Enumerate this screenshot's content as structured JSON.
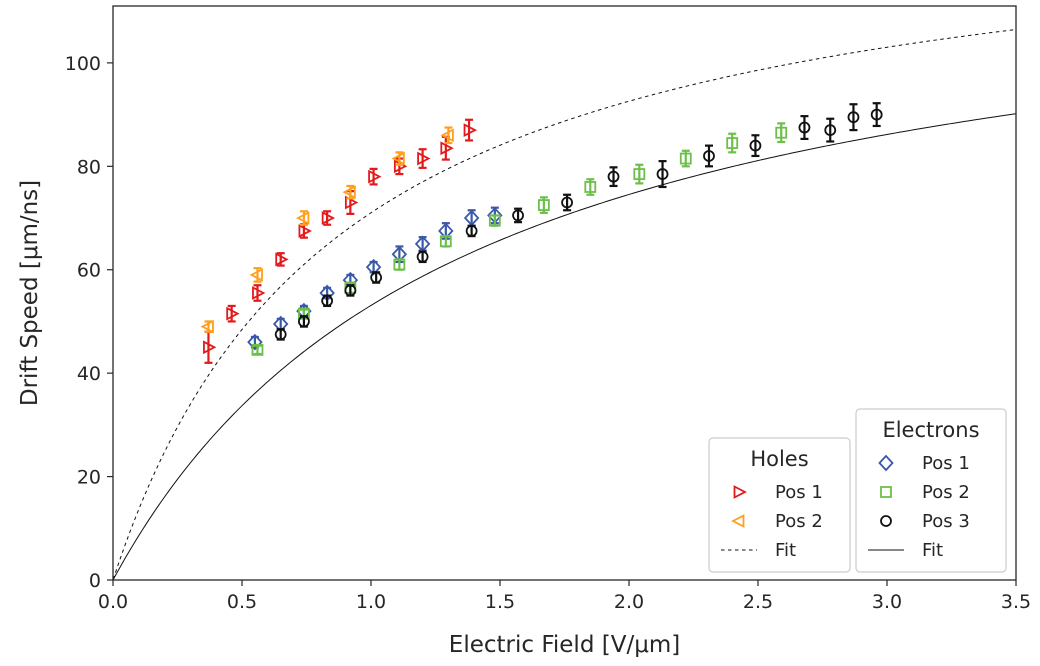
{
  "chart_data": {
    "type": "scatter",
    "xlabel": "Electric Field [V/μm]",
    "ylabel": "Drift Speed [μm/ns]",
    "xlim": [
      0,
      3.5
    ],
    "ylim": [
      0,
      111
    ],
    "xticks": [
      0.0,
      0.5,
      1.0,
      1.5,
      2.0,
      2.5,
      3.0,
      3.5
    ],
    "yticks": [
      0,
      20,
      40,
      60,
      80,
      100
    ],
    "xtick_labels": [
      "0.0",
      "0.5",
      "1.0",
      "1.5",
      "2.0",
      "2.5",
      "3.0",
      "3.5"
    ],
    "ytick_labels": [
      "0",
      "20",
      "40",
      "60",
      "80",
      "100"
    ],
    "grid": false,
    "legends": [
      {
        "title": "Holes",
        "placement": "lower-right",
        "entries": [
          {
            "label": "Pos 1",
            "series": "holes_pos1"
          },
          {
            "label": "Pos 2",
            "series": "holes_pos2"
          },
          {
            "label": "Fit",
            "series": "holes_fit"
          }
        ]
      },
      {
        "title": "Electrons",
        "placement": "lower-right",
        "entries": [
          {
            "label": "Pos 1",
            "series": "electrons_pos1"
          },
          {
            "label": "Pos 2",
            "series": "electrons_pos2"
          },
          {
            "label": "Pos 3",
            "series": "electrons_pos3"
          },
          {
            "label": "Fit",
            "series": "electrons_fit"
          }
        ]
      }
    ],
    "series": [
      {
        "id": "holes_pos1",
        "marker": "triangle-right",
        "color": "#e31a1c",
        "points": [
          [
            0.37,
            45.0,
            3.0
          ],
          [
            0.46,
            51.5,
            1.5
          ],
          [
            0.56,
            55.5,
            1.5
          ],
          [
            0.65,
            62.0,
            1.2
          ],
          [
            0.74,
            67.5,
            1.3
          ],
          [
            0.83,
            70.0,
            1.3
          ],
          [
            0.92,
            73.0,
            2.2
          ],
          [
            1.01,
            78.0,
            1.5
          ],
          [
            1.11,
            80.0,
            1.5
          ],
          [
            1.2,
            81.5,
            1.8
          ],
          [
            1.29,
            83.5,
            2.2
          ],
          [
            1.38,
            87.0,
            2.0
          ]
        ]
      },
      {
        "id": "holes_pos2",
        "marker": "triangle-left",
        "color": "#ff9f1c",
        "points": [
          [
            0.37,
            49.0,
            1.0
          ],
          [
            0.56,
            59.0,
            1.3
          ],
          [
            0.74,
            70.0,
            1.3
          ],
          [
            0.92,
            75.0,
            1.2
          ],
          [
            1.11,
            81.5,
            1.2
          ],
          [
            1.3,
            86.0,
            1.5
          ]
        ]
      },
      {
        "id": "electrons_pos1",
        "marker": "diamond",
        "color": "#3a58a8",
        "points": [
          [
            0.55,
            46.0,
            1.0
          ],
          [
            0.65,
            49.5,
            1.0
          ],
          [
            0.74,
            52.0,
            1.0
          ],
          [
            0.83,
            55.5,
            1.0
          ],
          [
            0.92,
            58.0,
            1.0
          ],
          [
            1.01,
            60.5,
            1.0
          ],
          [
            1.11,
            63.0,
            1.5
          ],
          [
            1.2,
            65.0,
            1.3
          ],
          [
            1.29,
            67.5,
            1.5
          ],
          [
            1.39,
            70.0,
            1.5
          ],
          [
            1.48,
            70.5,
            1.5
          ]
        ]
      },
      {
        "id": "electrons_pos2",
        "marker": "square",
        "color": "#6cbf4a",
        "points": [
          [
            0.56,
            44.5,
            0.8
          ],
          [
            0.74,
            51.5,
            0.8
          ],
          [
            0.92,
            56.5,
            1.0
          ],
          [
            1.11,
            61.0,
            1.0
          ],
          [
            1.29,
            65.5,
            1.0
          ],
          [
            1.48,
            69.5,
            1.0
          ],
          [
            1.67,
            72.5,
            1.5
          ],
          [
            1.85,
            76.0,
            1.5
          ],
          [
            2.04,
            78.5,
            1.8
          ],
          [
            2.22,
            81.5,
            1.5
          ],
          [
            2.4,
            84.5,
            1.8
          ],
          [
            2.59,
            86.5,
            1.8
          ]
        ]
      },
      {
        "id": "electrons_pos3",
        "marker": "circle",
        "color": "#111111",
        "points": [
          [
            0.65,
            47.5,
            1.0
          ],
          [
            0.74,
            50.0,
            1.0
          ],
          [
            0.83,
            54.0,
            1.0
          ],
          [
            0.92,
            56.0,
            1.0
          ],
          [
            1.02,
            58.5,
            1.0
          ],
          [
            1.2,
            62.5,
            1.0
          ],
          [
            1.39,
            67.5,
            1.0
          ],
          [
            1.57,
            70.5,
            1.3
          ],
          [
            1.76,
            73.0,
            1.5
          ],
          [
            1.94,
            78.0,
            1.8
          ],
          [
            2.13,
            78.5,
            2.5
          ],
          [
            2.31,
            82.0,
            2.0
          ],
          [
            2.49,
            84.0,
            2.0
          ],
          [
            2.68,
            87.5,
            2.2
          ],
          [
            2.78,
            87.0,
            2.2
          ],
          [
            2.87,
            89.5,
            2.5
          ],
          [
            2.96,
            90.0,
            2.2
          ]
        ]
      },
      {
        "id": "holes_fit",
        "marker": "none",
        "color": "#111111",
        "line": "dashed",
        "model": "v = vsat * E / (E + Ec)",
        "vsat": 133.0,
        "Ec": 0.873
      },
      {
        "id": "electrons_fit",
        "marker": "none",
        "color": "#111111",
        "line": "solid",
        "model": "v = vsat * E / (E + Ec)",
        "vsat": 125.1,
        "Ec": 1.356
      }
    ]
  }
}
